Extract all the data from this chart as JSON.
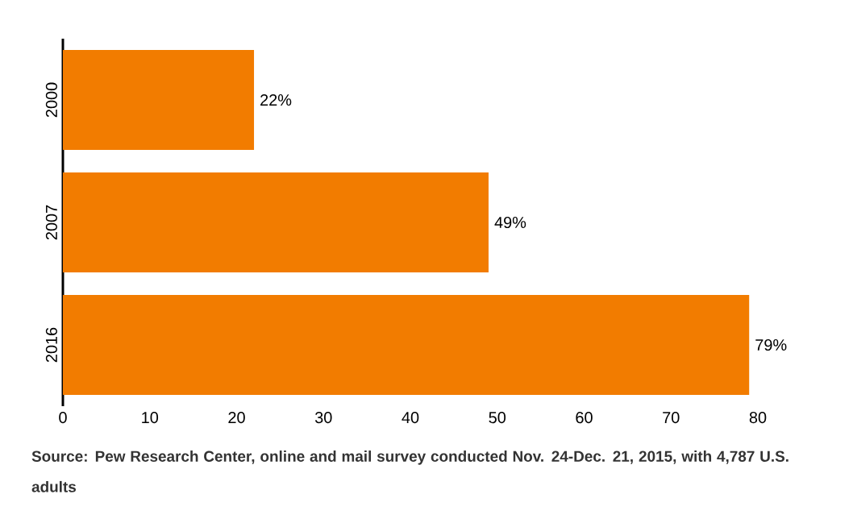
{
  "chart_data": {
    "type": "bar",
    "orientation": "horizontal",
    "categories": [
      "2000",
      "2007",
      "2016"
    ],
    "values": [
      22,
      49,
      79
    ],
    "value_labels": [
      "22%",
      "49%",
      "79%"
    ],
    "color": "#f27c00",
    "xlim": [
      0,
      80
    ],
    "xticks": [
      0,
      10,
      20,
      30,
      40,
      50,
      60,
      70,
      80
    ],
    "grid": false,
    "annotations": [
      "Source: Pew Research Center, online and mail survey conducted Nov. 24-Dec. 21, 2015, with 4,787 U.S. adults"
    ]
  }
}
